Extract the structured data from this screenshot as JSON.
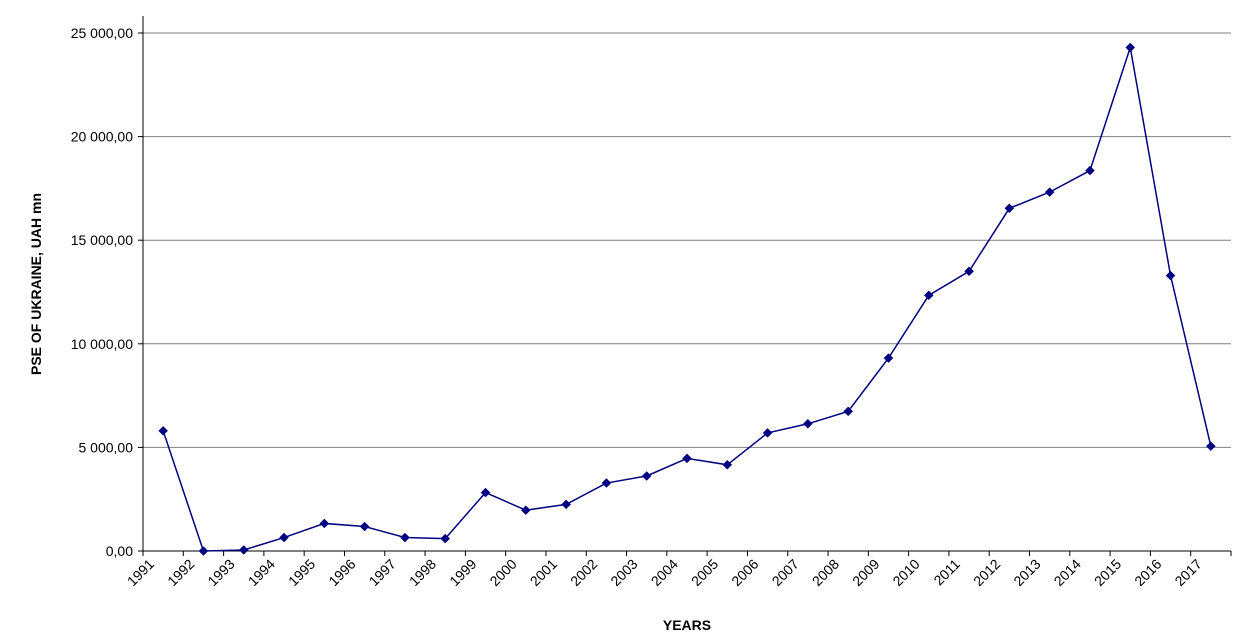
{
  "chart_data": {
    "type": "line",
    "title": "",
    "xlabel": "YEARS",
    "ylabel": "PSE OF UKRAINE, UAH mn",
    "ylim": [
      0,
      25000
    ],
    "yticks": [
      0,
      5000,
      10000,
      15000,
      20000,
      25000
    ],
    "ytick_labels": [
      "0,00",
      "5 000,00",
      "10 000,00",
      "15 000,00",
      "20 000,00",
      "25 000,00"
    ],
    "grid": "horizontal",
    "legend": "none",
    "categories": [
      "1991",
      "1992",
      "1993",
      "1994",
      "1995",
      "1996",
      "1997",
      "1998",
      "1999",
      "2000",
      "2001",
      "2002",
      "2003",
      "2004",
      "2005",
      "2006",
      "2007",
      "2008",
      "2009",
      "2010",
      "2011",
      "2012",
      "2013",
      "2014",
      "2015",
      "2016",
      "2017"
    ],
    "series": [
      {
        "color": "#000080",
        "marker": "diamond",
        "values": [
          5800,
          0,
          50,
          650,
          1330,
          1180,
          650,
          600,
          2820,
          1970,
          2250,
          3280,
          3620,
          4470,
          4160,
          5700,
          6140,
          6740,
          9310,
          12340,
          13500,
          16540,
          17320,
          18360,
          24300,
          13290,
          5060
        ]
      }
    ]
  }
}
